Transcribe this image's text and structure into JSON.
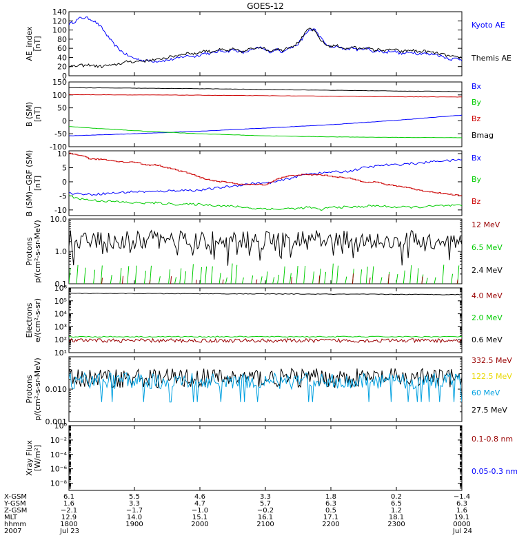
{
  "title": "GOES-12",
  "colors": {
    "black": "#000000",
    "blue": "#0000ff",
    "red": "#cc0000",
    "green": "#00cc00",
    "darkred": "#990000",
    "cyan": "#00a0e0",
    "yellow": "#e8d800",
    "axis": "#000000"
  },
  "chart_data": [
    {
      "type": "line",
      "panel": "ae",
      "ylabel": "AE index [nT]",
      "ylabel_lines": [
        "AE_index",
        "[nT]"
      ],
      "ylim": [
        0,
        140
      ],
      "yticks": [
        0,
        20,
        40,
        60,
        80,
        100,
        120,
        140
      ],
      "scale": "linear",
      "series": [
        {
          "name": "Kyoto AE",
          "color": "blue",
          "x": [
            0,
            5,
            10,
            15,
            20,
            25,
            30,
            35,
            40,
            45,
            50,
            55,
            60,
            65,
            70,
            75,
            80,
            85,
            90,
            95,
            100,
            105,
            110,
            115,
            120,
            125,
            130,
            135,
            140,
            145,
            150,
            155,
            160,
            165,
            170,
            175,
            180,
            185,
            190,
            195,
            200,
            205,
            210,
            215,
            220,
            225,
            230,
            235,
            240,
            245,
            250,
            255,
            260,
            265,
            270,
            275,
            280,
            285,
            290,
            295,
            300,
            305,
            310,
            315,
            320,
            325,
            330,
            335,
            340,
            345,
            350,
            355,
            360
          ],
          "y": [
            113,
            118,
            126,
            127,
            124,
            116,
            105,
            88,
            72,
            60,
            50,
            43,
            38,
            35,
            33,
            32,
            32,
            33,
            34,
            36,
            38,
            42,
            44,
            42,
            46,
            50,
            48,
            52,
            55,
            53,
            57,
            54,
            50,
            55,
            58,
            62,
            56,
            52,
            58,
            52,
            60,
            62,
            70,
            85,
            100,
            102,
            85,
            70,
            62,
            64,
            60,
            58,
            62,
            56,
            60,
            58,
            52,
            55,
            50,
            55,
            52,
            48,
            50,
            52,
            48,
            50,
            46,
            48,
            44,
            40,
            36,
            38,
            35
          ]
        },
        {
          "name": "Themis AE",
          "color": "black",
          "x": [
            0,
            5,
            10,
            15,
            20,
            25,
            30,
            35,
            40,
            45,
            50,
            55,
            60,
            65,
            70,
            75,
            80,
            85,
            90,
            95,
            100,
            105,
            110,
            115,
            120,
            125,
            130,
            135,
            140,
            145,
            150,
            155,
            160,
            165,
            170,
            175,
            180,
            185,
            190,
            195,
            200,
            205,
            210,
            215,
            220,
            225,
            230,
            235,
            240,
            245,
            250,
            255,
            260,
            265,
            270,
            275,
            280,
            285,
            290,
            295,
            300,
            305,
            310,
            315,
            320,
            325,
            330,
            335,
            340,
            345,
            350,
            355,
            360
          ],
          "y": [
            22,
            20,
            23,
            22,
            24,
            21,
            20,
            23,
            22,
            26,
            28,
            32,
            30,
            33,
            32,
            35,
            34,
            38,
            40,
            42,
            45,
            48,
            50,
            47,
            52,
            55,
            52,
            56,
            57,
            54,
            58,
            55,
            52,
            58,
            60,
            64,
            58,
            54,
            60,
            55,
            62,
            65,
            72,
            88,
            104,
            98,
            80,
            68,
            64,
            66,
            62,
            58,
            64,
            58,
            62,
            60,
            55,
            58,
            54,
            58,
            56,
            52,
            55,
            56,
            52,
            54,
            52,
            50,
            48,
            45,
            42,
            40,
            40
          ]
        }
      ]
    },
    {
      "type": "line",
      "panel": "bfield",
      "ylabel": "B (SM) [nT]",
      "ylabel_lines": [
        "B (SM)",
        "[nT]"
      ],
      "ylim": [
        -100,
        150
      ],
      "yticks": [
        -100,
        -50,
        0,
        50,
        100,
        150
      ],
      "scale": "linear",
      "series": [
        {
          "name": "Bx",
          "color": "blue",
          "x": [
            0,
            60,
            120,
            180,
            240,
            300,
            360
          ],
          "y": [
            -58,
            -50,
            -40,
            -28,
            -15,
            2,
            22
          ]
        },
        {
          "name": "By",
          "color": "green",
          "x": [
            0,
            20,
            60,
            120,
            180,
            240,
            300,
            360
          ],
          "y": [
            -22,
            -28,
            -38,
            -50,
            -58,
            -62,
            -64,
            -65
          ]
        },
        {
          "name": "Bz",
          "color": "red",
          "x": [
            0,
            60,
            120,
            180,
            240,
            300,
            360
          ],
          "y": [
            101,
            100,
            99,
            97,
            95,
            93,
            92
          ]
        },
        {
          "name": "Bmag",
          "color": "black",
          "x": [
            0,
            60,
            120,
            180,
            240,
            300,
            360
          ],
          "y": [
            128,
            126,
            124,
            121,
            118,
            115,
            113
          ]
        }
      ]
    },
    {
      "type": "line",
      "panel": "bdiff",
      "ylabel": "B (SM)-GRF (SM) [nT]",
      "ylabel_lines": [
        "B (SM)−GRF (SM)",
        "[nT]"
      ],
      "ylim": [
        -12,
        11
      ],
      "yticks": [
        -10,
        -5,
        0,
        5,
        10
      ],
      "scale": "linear",
      "series": [
        {
          "name": "Bx",
          "color": "blue",
          "x": [
            0,
            20,
            40,
            60,
            80,
            100,
            120,
            140,
            150,
            160,
            170,
            180,
            190,
            200,
            210,
            220,
            230,
            240,
            250,
            260,
            270,
            280,
            290,
            300,
            310,
            320,
            330,
            340,
            350,
            360
          ],
          "y": [
            -4,
            -4.5,
            -4,
            -3.5,
            -3.5,
            -3,
            -3,
            -2,
            -1.5,
            -1,
            -0.5,
            -0.5,
            0,
            1,
            2,
            3,
            3,
            3.5,
            3.5,
            4,
            5,
            5.5,
            6,
            6,
            6.5,
            6.5,
            7,
            7.5,
            7.5,
            8
          ]
        },
        {
          "name": "By",
          "color": "green",
          "x": [
            0,
            10,
            20,
            40,
            60,
            80,
            100,
            120,
            140,
            160,
            170,
            180,
            190,
            200,
            210,
            220,
            230,
            240,
            260,
            280,
            300,
            320,
            340,
            360
          ],
          "y": [
            -5,
            -6,
            -6.5,
            -7,
            -7.5,
            -7.5,
            -8,
            -8,
            -8.5,
            -9,
            -9.5,
            -9.5,
            -9.8,
            -9.5,
            -9.5,
            -9,
            -10,
            -9,
            -9,
            -8.5,
            -9,
            -9,
            -8.5,
            -8.5
          ]
        },
        {
          "name": "Bz",
          "color": "red",
          "x": [
            0,
            10,
            20,
            30,
            40,
            50,
            60,
            70,
            80,
            90,
            100,
            110,
            120,
            130,
            140,
            150,
            160,
            170,
            180,
            190,
            200,
            210,
            220,
            230,
            240,
            250,
            260,
            270,
            280,
            290,
            300,
            310,
            320,
            330,
            340,
            350,
            360
          ],
          "y": [
            10,
            9.5,
            8,
            8,
            7.5,
            7,
            7,
            6,
            6,
            5,
            4,
            3,
            1.5,
            0.5,
            0,
            -0.5,
            -1,
            -1,
            -1,
            1,
            2,
            2.5,
            2.5,
            2.5,
            2,
            1.5,
            1,
            0,
            0,
            -1,
            -1.5,
            -2,
            -3,
            -3.5,
            -4,
            -4.5,
            -5
          ]
        }
      ]
    },
    {
      "type": "line",
      "panel": "protons1",
      "ylabel": "Protons p/(cm2-s-sr-MeV)",
      "ylabel_lines": [
        "Protons",
        "p/(cm²-s-sr-MeV)"
      ],
      "ylim": [
        0.1,
        10.0
      ],
      "yticks": [
        0.1,
        1.0,
        10.0
      ],
      "ytick_labels": [
        "0.1",
        "1.0",
        "10.0"
      ],
      "scale": "log",
      "series": [
        {
          "name": "12 MeV",
          "color": "darkred",
          "x": [],
          "y": []
        },
        {
          "name": "6.5 MeV",
          "color": "green",
          "x": [],
          "y": []
        },
        {
          "name": "2.4 MeV",
          "color": "black",
          "x": [],
          "y": []
        }
      ]
    },
    {
      "type": "line",
      "panel": "electrons",
      "ylabel": "Electrons e/(cm2-s-sr)",
      "ylabel_lines": [
        "Electrons",
        "e/(cm²-s-sr)"
      ],
      "ylim": [
        10,
        1000000
      ],
      "yticks": [
        10,
        100,
        1000,
        10000,
        100000,
        1000000
      ],
      "ytick_labels": [
        "10¹",
        "10²",
        "10³",
        "10⁴",
        "10⁵",
        "10⁶"
      ],
      "scale": "log",
      "series": [
        {
          "name": "4.0 MeV",
          "color": "darkred",
          "x": [],
          "y": []
        },
        {
          "name": "2.0 MeV",
          "color": "green",
          "x": [
            0,
            120,
            240,
            360
          ],
          "y": [
            180,
            160,
            150,
            140
          ]
        },
        {
          "name": "0.6 MeV",
          "color": "black",
          "x": [
            0,
            120,
            240,
            360
          ],
          "y": [
            400000,
            350000,
            320000,
            300000
          ]
        }
      ]
    },
    {
      "type": "line",
      "panel": "protons2",
      "ylabel": "Protons p/(cm2-s-sr-MeV)",
      "ylabel_lines": [
        "Protons",
        "p/(cm²-s-sr-MeV)"
      ],
      "ylim": [
        0.001,
        0.1
      ],
      "yticks": [
        0.001,
        0.01
      ],
      "ytick_labels": [
        "0.001",
        "0.010"
      ],
      "scale": "log",
      "series": [
        {
          "name": "332.5 MeV",
          "color": "darkred",
          "x": [],
          "y": []
        },
        {
          "name": "122.5 MeV",
          "color": "yellow",
          "x": [],
          "y": []
        },
        {
          "name": "60 MeV",
          "color": "cyan",
          "x": [],
          "y": []
        },
        {
          "name": "27.5 MeV",
          "color": "black",
          "x": [],
          "y": []
        }
      ]
    },
    {
      "type": "line",
      "panel": "xray",
      "ylabel": "Xray Flux [W/m2]",
      "ylabel_lines": [
        "Xray Flux",
        "[W/m²]"
      ],
      "ylim": [
        1e-09,
        1
      ],
      "yticks": [
        1e-08,
        1e-06,
        0.0001,
        0.01,
        1
      ],
      "ytick_labels": [
        "10⁻⁸",
        "10⁻⁶",
        "10⁻⁴",
        "10⁻²",
        "10⁰"
      ],
      "scale": "log",
      "series": [
        {
          "name": "0.1-0.8 nm",
          "color": "darkred",
          "x": [],
          "y": []
        },
        {
          "name": "0.05-0.3 nm",
          "color": "blue",
          "x": [],
          "y": []
        }
      ]
    }
  ],
  "legends": {
    "ae": [
      {
        "label": "Kyoto AE",
        "color": "blue"
      },
      {
        "label": "Themis AE",
        "color": "black"
      }
    ],
    "bfield": [
      {
        "label": "Bx",
        "color": "blue"
      },
      {
        "label": "By",
        "color": "green"
      },
      {
        "label": "Bz",
        "color": "red"
      },
      {
        "label": "Bmag",
        "color": "black"
      }
    ],
    "bdiff": [
      {
        "label": "Bx",
        "color": "blue"
      },
      {
        "label": "By",
        "color": "green"
      },
      {
        "label": "Bz",
        "color": "red"
      }
    ],
    "protons1": [
      {
        "label": "12 MeV",
        "color": "darkred"
      },
      {
        "label": "6.5 MeV",
        "color": "green"
      },
      {
        "label": "2.4 MeV",
        "color": "black"
      }
    ],
    "electrons": [
      {
        "label": "4.0 MeV",
        "color": "darkred"
      },
      {
        "label": "2.0 MeV",
        "color": "green"
      },
      {
        "label": "0.6 MeV",
        "color": "black"
      }
    ],
    "protons2": [
      {
        "label": "332.5 MeV",
        "color": "darkred"
      },
      {
        "label": "122.5 MeV",
        "color": "yellow"
      },
      {
        "label": "60 MeV",
        "color": "cyan"
      },
      {
        "label": "27.5 MeV",
        "color": "black"
      }
    ],
    "xray": [
      {
        "label": "0.1-0.8 nm",
        "color": "darkred"
      },
      {
        "label": "0.05-0.3 nm",
        "color": "blue"
      }
    ]
  },
  "xaxis": {
    "row_labels": [
      "X-GSM",
      "Y-GSM",
      "Z-GSM",
      "MLT",
      "hhmm",
      "2007"
    ],
    "columns": [
      [
        "6.1",
        "1.6",
        "−2.1",
        "12.9",
        "1800",
        "Jul 23"
      ],
      [
        "5.5",
        "3.3",
        "−1.7",
        "14.0",
        "1900",
        ""
      ],
      [
        "4.6",
        "4.7",
        "−1.0",
        "15.1",
        "2000",
        ""
      ],
      [
        "3.3",
        "5.7",
        "−0.2",
        "16.1",
        "2100",
        ""
      ],
      [
        "1.8",
        "6.3",
        "0.5",
        "17.1",
        "2200",
        ""
      ],
      [
        "0.2",
        "6.5",
        "1.2",
        "18.1",
        "2300",
        ""
      ],
      [
        "−1.4",
        "6.3",
        "1.6",
        "19.1",
        "0000",
        "Jul 24"
      ]
    ]
  }
}
